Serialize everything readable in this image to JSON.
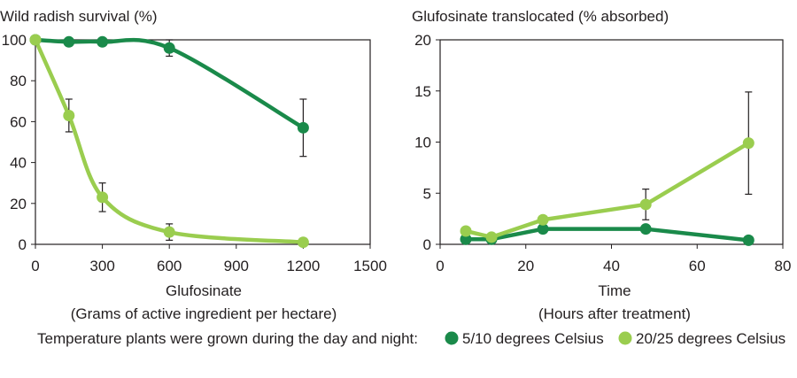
{
  "colors": {
    "dark_green": "#1a8a4a",
    "light_green": "#9acd4f",
    "axis": "#231f20"
  },
  "legend": {
    "title": "Temperature plants were grown during the day and night:",
    "items": [
      {
        "label": "5/10 degrees Celsius",
        "color": "#1a8a4a"
      },
      {
        "label": "20/25 degrees Celsius",
        "color": "#9acd4f"
      }
    ]
  },
  "chart_data": [
    {
      "type": "line",
      "title": "Wild radish survival (%)",
      "xlabel": "Glufosinate",
      "xlabel_sub": "(Grams of active ingredient per hectare)",
      "ylabel": "",
      "xlim": [
        0,
        1500
      ],
      "ylim": [
        0,
        100
      ],
      "xticks": [
        0,
        300,
        600,
        900,
        1200,
        1500
      ],
      "yticks": [
        0,
        20,
        40,
        60,
        80,
        100
      ],
      "smooth": true,
      "grid": false,
      "series": [
        {
          "name": "5/10 degrees Celsius",
          "color": "#1a8a4a",
          "x": [
            0,
            150,
            300,
            600,
            1200
          ],
          "y": [
            100,
            99,
            99,
            96,
            57
          ],
          "err": [
            0,
            0,
            0,
            4,
            14
          ]
        },
        {
          "name": "20/25 degrees Celsius",
          "color": "#9acd4f",
          "x": [
            0,
            150,
            300,
            600,
            1200
          ],
          "y": [
            100,
            63,
            23,
            6,
            1
          ],
          "err": [
            0,
            8,
            7,
            4,
            2
          ]
        }
      ]
    },
    {
      "type": "line",
      "title": "Glufosinate translocated (% absorbed)",
      "xlabel": "Time",
      "xlabel_sub": "(Hours after treatment)",
      "ylabel": "",
      "xlim": [
        0,
        80
      ],
      "ylim": [
        0,
        20
      ],
      "xticks": [
        0,
        20,
        40,
        60,
        80
      ],
      "yticks": [
        0,
        5,
        10,
        15,
        20
      ],
      "smooth": false,
      "grid": false,
      "series": [
        {
          "name": "5/10 degrees Celsius",
          "color": "#1a8a4a",
          "x": [
            6,
            12,
            24,
            48,
            72
          ],
          "y": [
            0.5,
            0.5,
            1.5,
            1.5,
            0.4
          ],
          "err": [
            0,
            0,
            0,
            0,
            0
          ]
        },
        {
          "name": "20/25 degrees Celsius",
          "color": "#9acd4f",
          "x": [
            6,
            12,
            24,
            48,
            72
          ],
          "y": [
            1.3,
            0.7,
            2.4,
            3.9,
            9.9
          ],
          "err": [
            0,
            0,
            0,
            1.5,
            5
          ]
        }
      ]
    }
  ]
}
